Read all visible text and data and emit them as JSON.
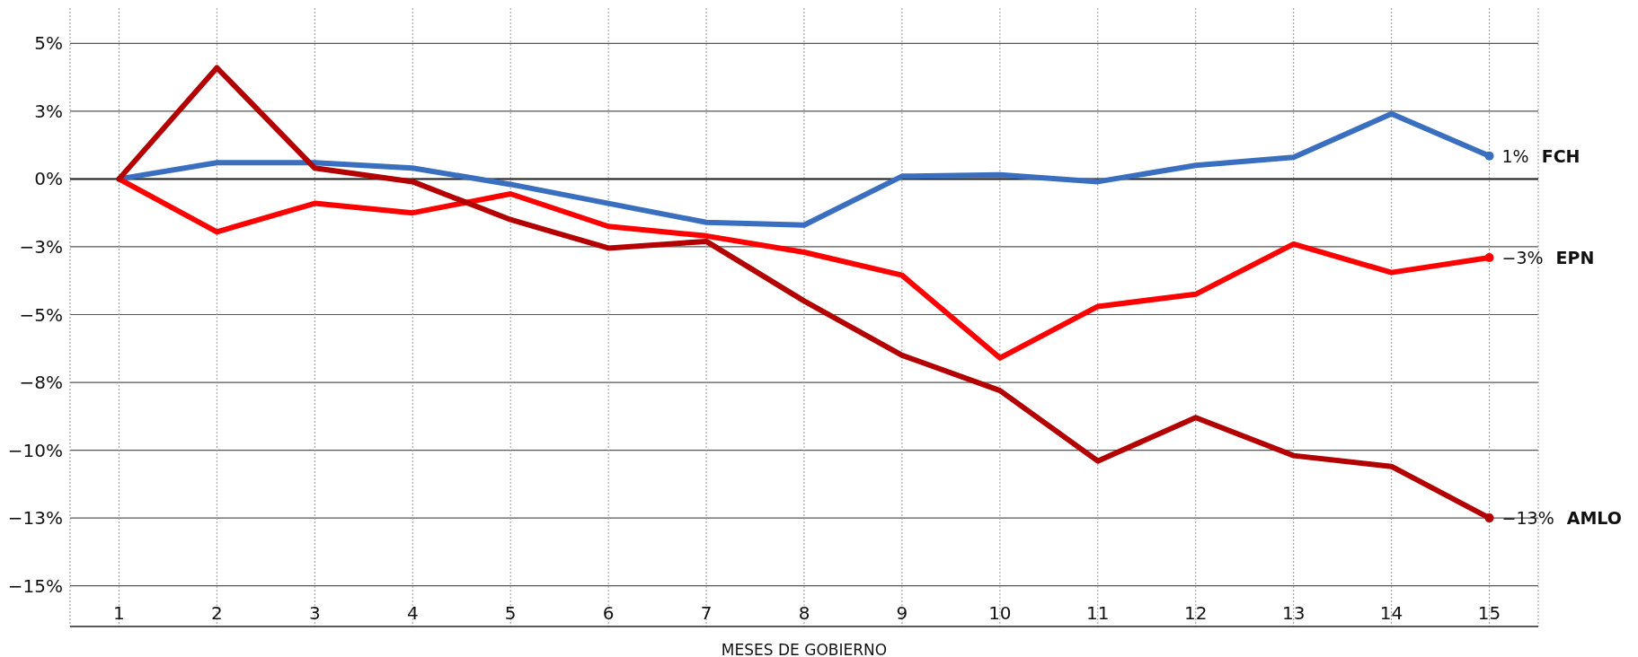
{
  "chart_data": {
    "type": "line",
    "xlabel": "MESES DE GOBIERNO",
    "x": [
      1,
      2,
      3,
      4,
      5,
      6,
      7,
      8,
      9,
      10,
      11,
      12,
      13,
      14,
      15
    ],
    "xlim": [
      0.5,
      15.5
    ],
    "xticks": [
      1,
      2,
      3,
      4,
      5,
      6,
      7,
      8,
      9,
      10,
      11,
      12,
      13,
      14,
      15
    ],
    "ylim": [
      -16.5,
      6.3
    ],
    "yticks": [
      {
        "value": 5,
        "label": "5%"
      },
      {
        "value": 2.5,
        "label": "3%"
      },
      {
        "value": 0,
        "label": "0%"
      },
      {
        "value": -2.5,
        "label": "−3%"
      },
      {
        "value": -5,
        "label": "−5%"
      },
      {
        "value": -7.5,
        "label": "−8%"
      },
      {
        "value": -10,
        "label": "−10%"
      },
      {
        "value": -12.5,
        "label": "−13%"
      },
      {
        "value": -15,
        "label": "−15%"
      }
    ],
    "grid": true,
    "ref_lines": [
      {
        "axis": "y",
        "value": 0,
        "color": "#222222"
      }
    ],
    "series": [
      {
        "name": "FCH",
        "color": "#3a6fc0",
        "values": [
          0,
          0.6,
          0.6,
          0.4,
          -0.2,
          -0.9,
          -1.6,
          -1.7,
          0.1,
          0.15,
          -0.1,
          0.5,
          0.8,
          2.4,
          0.85
        ],
        "value_labels": [
          null,
          null,
          null,
          null,
          null,
          null,
          null,
          null,
          null,
          null,
          null,
          null,
          null,
          null,
          "1%"
        ]
      },
      {
        "name": "EPN",
        "color": "#ff0000",
        "values": [
          0,
          -1.95,
          -0.9,
          -1.25,
          -0.55,
          -1.75,
          -2.1,
          -2.7,
          -3.55,
          -6.6,
          -4.7,
          -4.25,
          -2.4,
          -3.45,
          -2.9
        ],
        "value_labels": [
          null,
          null,
          null,
          null,
          null,
          null,
          null,
          null,
          null,
          null,
          null,
          null,
          null,
          null,
          "−3%"
        ]
      },
      {
        "name": "AMLO",
        "color": "#b30000",
        "values": [
          0,
          4.1,
          0.4,
          -0.1,
          -1.5,
          -2.55,
          -2.3,
          -4.5,
          -6.5,
          -7.8,
          -10.4,
          -8.8,
          -10.2,
          -10.6,
          -12.5
        ],
        "value_labels": [
          null,
          null,
          null,
          null,
          null,
          null,
          null,
          null,
          null,
          null,
          null,
          null,
          null,
          null,
          "−13%"
        ]
      }
    ]
  }
}
